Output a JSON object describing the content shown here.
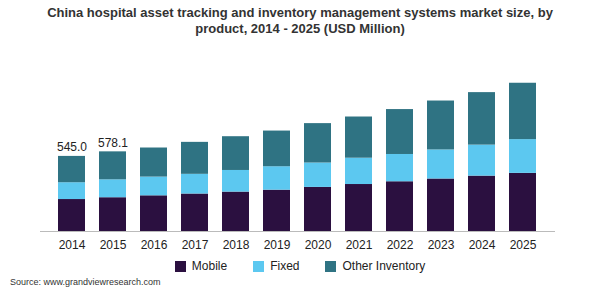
{
  "chart_data": {
    "type": "bar",
    "stacked": true,
    "title": "China hospital asset tracking and inventory management systems market size, by product, 2014 - 2025 (USD Million)",
    "source": "Source: www.grandviewresearch.com",
    "categories": [
      "2014",
      "2015",
      "2016",
      "2017",
      "2018",
      "2019",
      "2020",
      "2021",
      "2022",
      "2023",
      "2024",
      "2025"
    ],
    "series": [
      {
        "name": "Mobile",
        "color": "#2b1040",
        "values": [
          232,
          245.1,
          259,
          272,
          286,
          300,
          320,
          341,
          361,
          381,
          402,
          422
        ]
      },
      {
        "name": "Fixed",
        "color": "#5cc8f0",
        "values": [
          122,
          130,
          136,
          143,
          157,
          170,
          177,
          191,
          198,
          211,
          225,
          245
        ]
      },
      {
        "name": "Other Inventory",
        "color": "#2f7383",
        "values": [
          191,
          203,
          211,
          232,
          245,
          259,
          286,
          299,
          326,
          355,
          381,
          409
        ]
      }
    ],
    "annotations": [
      {
        "x": "2014",
        "label": "545.0"
      },
      {
        "x": "2015",
        "label": "578.1"
      }
    ],
    "ylim": [
      0,
      1350
    ],
    "tick_labels": "x",
    "grid": false,
    "legend": "bottom"
  }
}
